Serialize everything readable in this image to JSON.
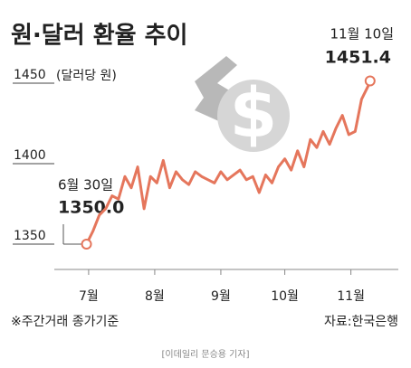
{
  "chart_data": {
    "type": "line",
    "title": "원·달러 환율 추이",
    "y_label": "(달러당 원)",
    "x": [
      0,
      3,
      6,
      9,
      12,
      15,
      18,
      21,
      24,
      27,
      30,
      33,
      36,
      39,
      42,
      45,
      48,
      51,
      54,
      57,
      60,
      63,
      66,
      69,
      72,
      75,
      78,
      81,
      84,
      87,
      90,
      93,
      96,
      99,
      102,
      105,
      108,
      111,
      114,
      117,
      120,
      123,
      126,
      129,
      132,
      133
    ],
    "values": [
      1350,
      1358,
      1368,
      1372,
      1380,
      1378,
      1392,
      1385,
      1398,
      1372,
      1392,
      1388,
      1402,
      1385,
      1395,
      1390,
      1387,
      1395,
      1392,
      1390,
      1388,
      1395,
      1390,
      1393,
      1396,
      1390,
      1392,
      1382,
      1393,
      1388,
      1398,
      1403,
      1396,
      1408,
      1398,
      1415,
      1410,
      1420,
      1412,
      1422,
      1430,
      1418,
      1420,
      1440,
      1448,
      1451.4
    ],
    "color": "#e5765c",
    "xlim": [
      -10,
      142
    ],
    "xticks": [
      {
        "value": 1,
        "label": "7월"
      },
      {
        "value": 32,
        "label": "8월"
      },
      {
        "value": 63,
        "label": "9월"
      },
      {
        "value": 93,
        "label": "10월"
      },
      {
        "value": 124,
        "label": "11월"
      }
    ],
    "ylim": [
      1330,
      1460
    ],
    "yticks": [
      1350,
      1400,
      1450
    ],
    "annotations": [
      {
        "date": "6월 30일",
        "value_label": "1350.0"
      },
      {
        "date": "11월 10일",
        "value_label": "1451.4"
      }
    ],
    "note": "※주간거래 종가기준",
    "source": "자료:한국은행",
    "credit": "[이데일리 문승용 기자]"
  }
}
